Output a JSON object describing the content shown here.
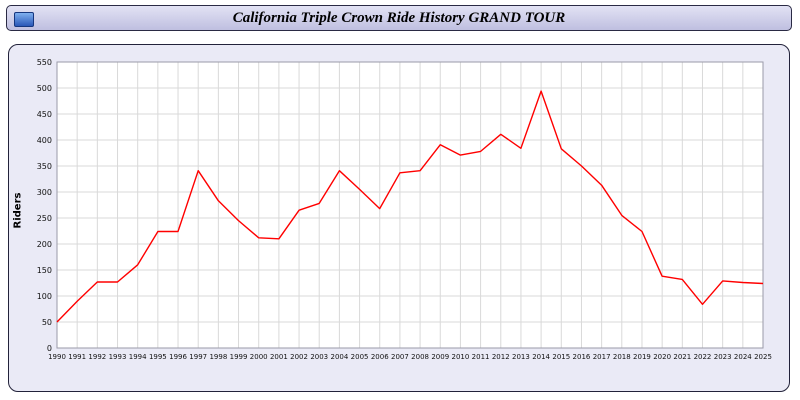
{
  "header": {
    "title": "California Triple Crown Ride History GRAND TOUR",
    "icon": "app-icon",
    "bg_color": "#c8c8ea"
  },
  "panel": {
    "bg_color": "#eaeaf6"
  },
  "chart_data": {
    "type": "line",
    "title": "California Triple Crown Ride History GRAND TOUR",
    "xlabel": "",
    "ylabel": "Riders",
    "ylim": [
      0,
      550
    ],
    "ytick_step": 50,
    "grid": true,
    "legend": "none",
    "line_color": "#ff0000",
    "grid_color": "#d9d9d9",
    "plot_bg": "#ffffff",
    "categories": [
      "1990",
      "1991",
      "1992",
      "1993",
      "1994",
      "1995",
      "1996",
      "1997",
      "1998",
      "1999",
      "2000",
      "2001",
      "2002",
      "2003",
      "2004",
      "2005",
      "2006",
      "2007",
      "2008",
      "2009",
      "2010",
      "2011",
      "2012",
      "2013",
      "2014",
      "2015",
      "2016",
      "2017",
      "2018",
      "2019",
      "2020",
      "2021",
      "2022",
      "2023",
      "2024",
      "2025"
    ],
    "values": [
      50,
      90,
      127,
      127,
      160,
      224,
      224,
      341,
      283,
      245,
      212,
      210,
      265,
      278,
      341,
      305,
      268,
      337,
      341,
      391,
      371,
      378,
      411,
      384,
      494,
      383,
      350,
      313,
      255,
      224,
      138,
      132,
      84,
      129,
      126,
      124
    ]
  }
}
